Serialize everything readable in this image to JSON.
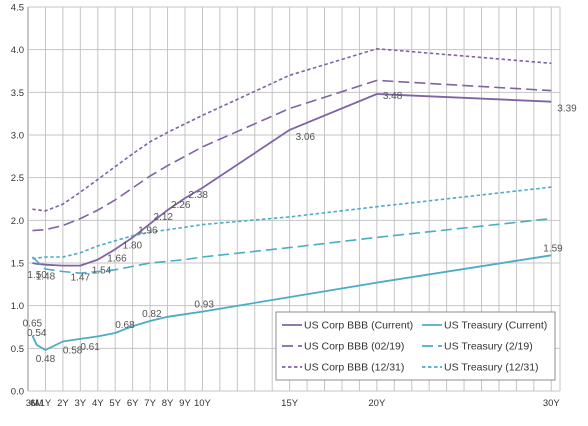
{
  "chart_data": {
    "type": "line",
    "title": "",
    "xlabel": "",
    "ylabel": "",
    "x_labels": [
      "3M",
      "6M",
      "1Y",
      "2Y",
      "3Y",
      "4Y",
      "5Y",
      "6Y",
      "7Y",
      "8Y",
      "9Y",
      "10Y",
      "15Y",
      "20Y",
      "30Y"
    ],
    "x_positions_years": [
      0.25,
      0.5,
      1,
      2,
      3,
      4,
      5,
      6,
      7,
      8,
      9,
      10,
      15,
      20,
      30
    ],
    "y_ticks": [
      "0.0",
      "0.5",
      "1.0",
      "1.5",
      "2.0",
      "2.5",
      "3.0",
      "3.5",
      "4.0",
      "4.5"
    ],
    "ylim": [
      0,
      4.5
    ],
    "grid": true,
    "legend_position": "bottom-right",
    "series": [
      {
        "name": "US Corp BBB (Current)",
        "color": "#8064a2",
        "style": "solid",
        "x": [
          0.25,
          0.5,
          1,
          2,
          3,
          4,
          5,
          6,
          7,
          8,
          9,
          10,
          15,
          20,
          30
        ],
        "y": [
          1.5,
          1.49,
          1.48,
          1.47,
          1.47,
          1.54,
          1.66,
          1.8,
          1.96,
          2.12,
          2.26,
          2.38,
          3.06,
          3.48,
          3.39
        ],
        "labels": [
          "1.50",
          "",
          "1.48",
          "",
          "1.47",
          "1.54",
          "1.66",
          "1.80",
          "1.96",
          "2.12",
          "2.26",
          "2.38",
          "3.06",
          "3.48",
          "3.39"
        ]
      },
      {
        "name": "US Treasury (Current)",
        "color": "#4bacc6",
        "style": "solid",
        "x": [
          0.25,
          0.5,
          1,
          2,
          3,
          4,
          5,
          6,
          7,
          8,
          9,
          10,
          15,
          20,
          30
        ],
        "y": [
          0.65,
          0.54,
          0.48,
          0.58,
          0.61,
          0.64,
          0.68,
          0.76,
          0.82,
          0.87,
          0.9,
          0.93,
          1.1,
          1.27,
          1.59
        ],
        "labels": [
          "0.65",
          "0.54",
          "0.48",
          "0.58",
          "0.61",
          "",
          "0.68",
          "",
          "0.82",
          "",
          "",
          "0.93",
          "",
          "",
          "1.59"
        ]
      },
      {
        "name": "US Corp BBB (02/19)",
        "color": "#8064a2",
        "style": "longdash",
        "x": [
          0.25,
          1,
          2,
          3,
          4,
          5,
          6,
          7,
          8,
          9,
          10,
          15,
          20,
          30
        ],
        "y": [
          1.88,
          1.89,
          1.94,
          2.02,
          2.12,
          2.24,
          2.38,
          2.52,
          2.64,
          2.75,
          2.86,
          3.31,
          3.64,
          3.52
        ],
        "labels": []
      },
      {
        "name": "US Treasury (2/19)",
        "color": "#4bacc6",
        "style": "longdash",
        "x": [
          0.25,
          1,
          2,
          3,
          4,
          5,
          6,
          7,
          8,
          9,
          10,
          15,
          20,
          30
        ],
        "y": [
          1.57,
          1.43,
          1.4,
          1.38,
          1.4,
          1.42,
          1.46,
          1.5,
          1.52,
          1.54,
          1.57,
          1.68,
          1.8,
          2.02
        ],
        "labels": []
      },
      {
        "name": "US Corp BBB (12/31)",
        "color": "#8064a2",
        "style": "shortdash",
        "x": [
          0.25,
          1,
          2,
          3,
          4,
          5,
          6,
          7,
          8,
          9,
          10,
          15,
          20,
          30
        ],
        "y": [
          2.13,
          2.11,
          2.19,
          2.33,
          2.48,
          2.63,
          2.78,
          2.92,
          3.03,
          3.13,
          3.23,
          3.7,
          4.01,
          3.84
        ],
        "labels": []
      },
      {
        "name": "US Treasury (12/31)",
        "color": "#4bacc6",
        "style": "shortdash",
        "x": [
          0.25,
          1,
          2,
          3,
          4,
          5,
          6,
          7,
          8,
          9,
          10,
          15,
          20,
          30
        ],
        "y": [
          1.55,
          1.57,
          1.57,
          1.62,
          1.7,
          1.76,
          1.82,
          1.86,
          1.89,
          1.92,
          1.95,
          2.04,
          2.16,
          2.39
        ],
        "labels": []
      }
    ],
    "legend": [
      {
        "label": "US Corp BBB (Current)",
        "color": "#8064a2",
        "style": "solid"
      },
      {
        "label": "US Treasury (Current)",
        "color": "#4bacc6",
        "style": "solid"
      },
      {
        "label": "US Corp BBB (02/19)",
        "color": "#8064a2",
        "style": "longdash"
      },
      {
        "label": "US Treasury (2/19)",
        "color": "#4bacc6",
        "style": "longdash"
      },
      {
        "label": "US Corp BBB (12/31)",
        "color": "#8064a2",
        "style": "shortdash"
      },
      {
        "label": "US Treasury (12/31)",
        "color": "#4bacc6",
        "style": "shortdash"
      }
    ]
  }
}
